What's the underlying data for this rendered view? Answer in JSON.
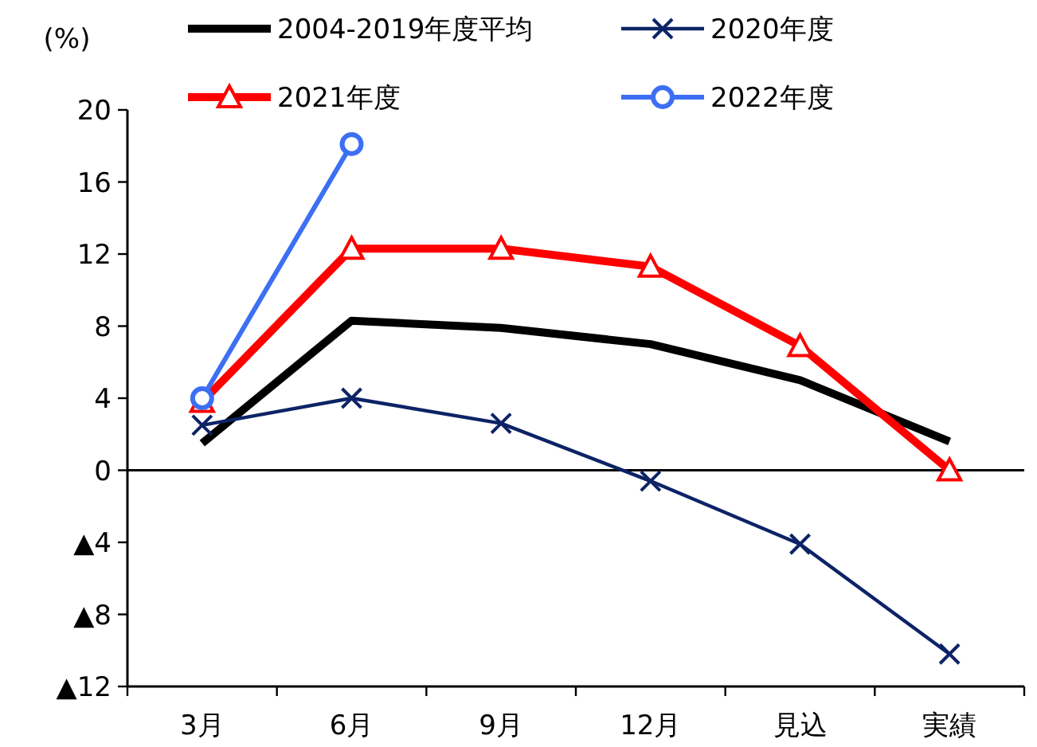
{
  "chart_data": {
    "type": "line",
    "ylabel": "(%)",
    "categories": [
      "3月",
      "6月",
      "9月",
      "12月",
      "見込",
      "実績"
    ],
    "series": [
      {
        "name": "2004-2019年度平均",
        "color": "#000000",
        "marker": "none",
        "values": [
          1.5,
          8.3,
          7.9,
          7.0,
          5.0,
          1.6
        ]
      },
      {
        "name": "2020年度",
        "color": "#0c2366",
        "marker": "cross",
        "values": [
          2.5,
          4.0,
          2.6,
          -0.6,
          -4.1,
          -10.2
        ]
      },
      {
        "name": "2021年度",
        "color": "#ff0000",
        "marker": "triangle",
        "values": [
          3.8,
          12.3,
          12.3,
          11.3,
          6.9,
          0
        ]
      },
      {
        "name": "2022年度",
        "color": "#3d6ff5",
        "marker": "circle",
        "values": [
          4.0,
          18.1,
          null,
          null,
          null,
          null
        ]
      }
    ],
    "ylim": [
      -12,
      20
    ],
    "yticks": [
      20,
      16,
      12,
      8,
      4,
      0,
      {
        "value": -4,
        "label": "▲4"
      },
      {
        "value": -8,
        "label": "▲8"
      },
      {
        "value": -12,
        "label": "▲12"
      }
    ],
    "ref_lines": [
      {
        "axis": "y",
        "value": 0,
        "color": "#000000"
      }
    ],
    "grid": false,
    "legend": "top"
  }
}
